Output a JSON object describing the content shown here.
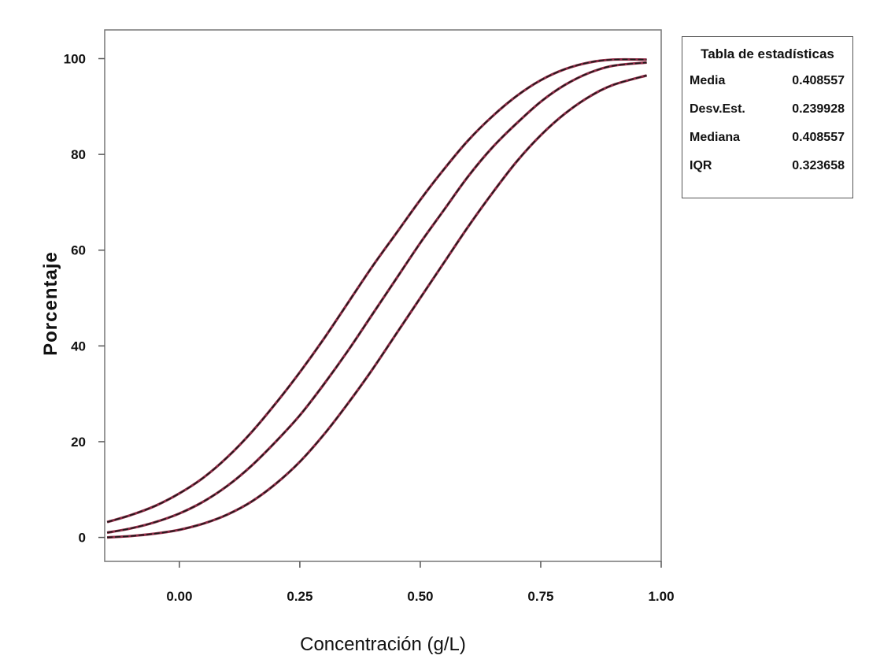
{
  "chart_data": {
    "type": "line",
    "title": "",
    "xlabel": "Concentración (g/L)",
    "ylabel": "Porcentaje",
    "xlim": [
      -0.155,
      1.0
    ],
    "ylim": [
      -5,
      106
    ],
    "x_ticks": [
      "0.00",
      "0.25",
      "0.50",
      "0.75",
      "1.00"
    ],
    "x_tick_values": [
      0.0,
      0.25,
      0.5,
      0.75,
      1.0
    ],
    "y_ticks": [
      "0",
      "20",
      "40",
      "60",
      "80",
      "100"
    ],
    "y_tick_values": [
      0,
      20,
      40,
      60,
      80,
      100
    ],
    "grid": false,
    "line_color": "#8e2a45",
    "series": [
      {
        "x": [
          -0.15,
          -0.1,
          -0.05,
          0.0,
          0.05,
          0.1,
          0.15,
          0.2,
          0.25,
          0.3,
          0.35,
          0.4,
          0.45,
          0.5,
          0.55,
          0.6,
          0.65,
          0.7,
          0.75,
          0.8,
          0.85,
          0.9,
          0.97
        ],
        "values": [
          3.2,
          4.7,
          6.6,
          9.2,
          12.5,
          16.8,
          22,
          28,
          34.5,
          41.5,
          49,
          56.5,
          63.5,
          70.5,
          77,
          83,
          88,
          92.2,
          95.5,
          97.8,
          99.2,
          99.8,
          99.8
        ]
      },
      {
        "x": [
          -0.15,
          -0.1,
          -0.05,
          0.0,
          0.05,
          0.1,
          0.15,
          0.2,
          0.25,
          0.3,
          0.35,
          0.4,
          0.45,
          0.5,
          0.55,
          0.6,
          0.65,
          0.7,
          0.75,
          0.8,
          0.85,
          0.9,
          0.97
        ],
        "values": [
          1.0,
          1.9,
          3.2,
          5.0,
          7.5,
          10.8,
          15,
          20,
          25.5,
          32,
          39,
          46.5,
          54,
          61.5,
          68.5,
          75.5,
          81.5,
          86.5,
          91,
          94.5,
          97,
          98.5,
          99.2
        ]
      },
      {
        "x": [
          -0.15,
          -0.1,
          -0.05,
          0.0,
          0.05,
          0.1,
          0.15,
          0.2,
          0.25,
          0.3,
          0.35,
          0.4,
          0.45,
          0.5,
          0.55,
          0.6,
          0.65,
          0.7,
          0.75,
          0.8,
          0.85,
          0.9,
          0.97
        ],
        "values": [
          0.0,
          0.3,
          0.8,
          1.6,
          2.9,
          4.8,
          7.5,
          11.2,
          15.8,
          21.5,
          28,
          35,
          42.5,
          50,
          57.5,
          65,
          72,
          78.5,
          84,
          88.5,
          92,
          94.5,
          96.5
        ]
      }
    ]
  },
  "stats_table": {
    "title": "Tabla de estadísticas",
    "rows": [
      {
        "label": "Media",
        "value": "0.408557"
      },
      {
        "label": "Desv.Est.",
        "value": "0.239928"
      },
      {
        "label": "Mediana",
        "value": "0.408557"
      },
      {
        "label": "IQR",
        "value": "0.323658"
      }
    ]
  }
}
